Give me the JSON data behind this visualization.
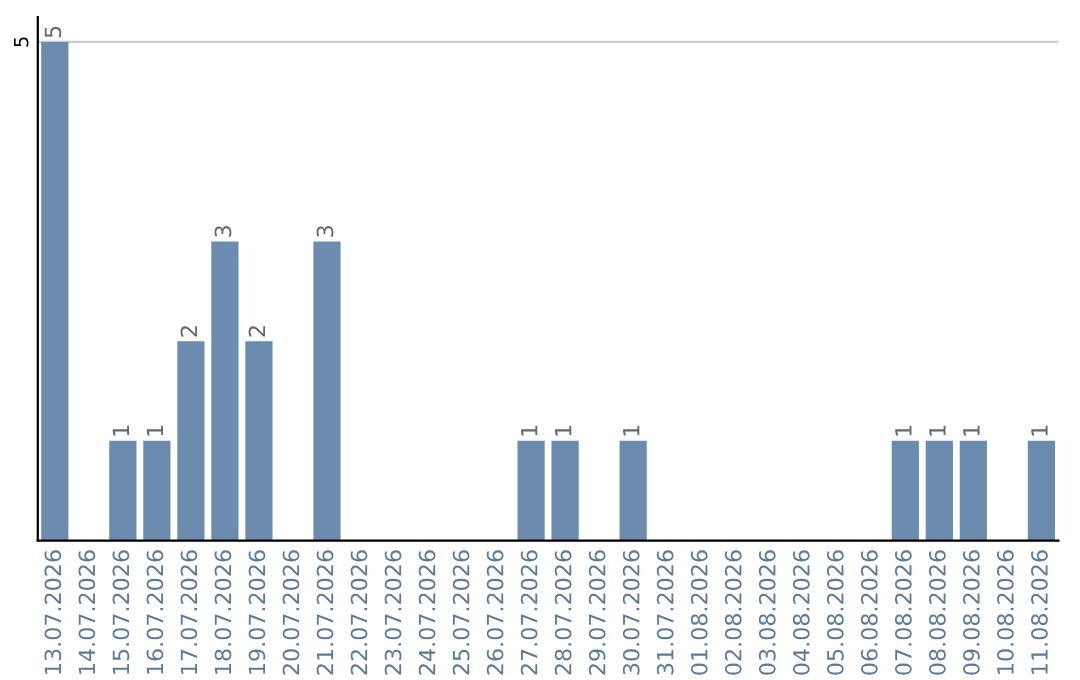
{
  "chart_data": {
    "type": "bar",
    "categories": [
      "13.07.2026",
      "14.07.2026",
      "15.07.2026",
      "16.07.2026",
      "17.07.2026",
      "18.07.2026",
      "19.07.2026",
      "20.07.2026",
      "21.07.2026",
      "22.07.2026",
      "23.07.2026",
      "24.07.2026",
      "25.07.2026",
      "26.07.2026",
      "27.07.2026",
      "28.07.2026",
      "29.07.2026",
      "30.07.2026",
      "31.07.2026",
      "01.08.2026",
      "02.08.2026",
      "03.08.2026",
      "04.08.2026",
      "05.08.2026",
      "06.08.2026",
      "07.08.2026",
      "08.08.2026",
      "09.08.2026",
      "10.08.2026",
      "11.08.2026"
    ],
    "values": [
      5,
      0,
      1,
      1,
      2,
      3,
      2,
      0,
      3,
      0,
      0,
      0,
      0,
      0,
      1,
      1,
      0,
      1,
      0,
      0,
      0,
      0,
      0,
      0,
      0,
      1,
      1,
      1,
      0,
      1
    ],
    "value_labels": [
      "5",
      null,
      "1",
      "1",
      "2",
      "3",
      "2",
      null,
      "3",
      null,
      null,
      null,
      null,
      null,
      "1",
      "1",
      null,
      "1",
      null,
      null,
      null,
      null,
      null,
      null,
      null,
      "1",
      "1",
      "1",
      null,
      "1"
    ],
    "color": "#6b8cae",
    "ylim": [
      0,
      5.25
    ],
    "yticks": [
      5
    ],
    "grid": "y"
  }
}
